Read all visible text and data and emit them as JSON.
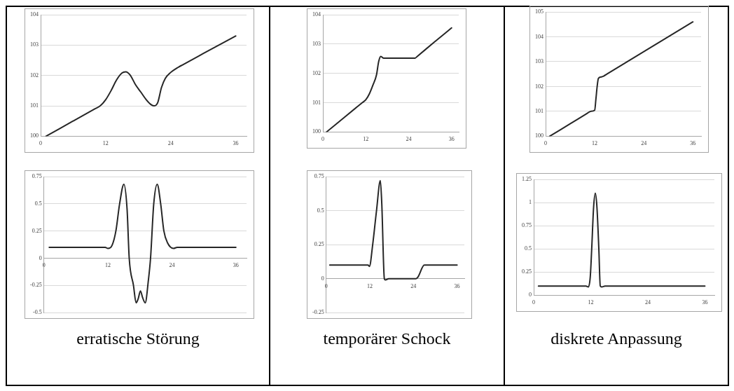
{
  "chart_data": [
    {
      "type": "line",
      "color": "#262626",
      "xlim": [
        0,
        38
      ],
      "xticks": [
        0,
        12,
        24,
        36
      ],
      "ylim": [
        100,
        104
      ],
      "yticks": [
        100,
        101,
        102,
        103,
        104
      ],
      "grid": "y",
      "x": [
        1,
        6,
        10,
        11,
        12,
        13,
        14,
        15,
        15.7,
        16.5,
        17.5,
        18.5,
        19.5,
        20.3,
        20.9,
        21.6,
        22.3,
        23,
        24,
        25.2,
        26.2,
        30,
        36
      ],
      "values": [
        100,
        100.5,
        100.9,
        101,
        101.2,
        101.5,
        101.85,
        102.08,
        102.12,
        102.02,
        101.7,
        101.45,
        101.2,
        101.05,
        101,
        101.1,
        101.6,
        101.9,
        102.1,
        102.25,
        102.35,
        102.72,
        103.3
      ]
    },
    {
      "type": "line",
      "color": "#262626",
      "xlim": [
        0,
        38
      ],
      "xticks": [
        0,
        12,
        24,
        36
      ],
      "ylim": [
        100,
        104
      ],
      "yticks": [
        100,
        101,
        102,
        103,
        104
      ],
      "grid": "y",
      "x": [
        1,
        6,
        11,
        12,
        13,
        14,
        15,
        15.6,
        16.2,
        17,
        21,
        25.8,
        26.4,
        31,
        36
      ],
      "values": [
        100,
        100.5,
        101,
        101.1,
        101.3,
        101.6,
        101.95,
        102.4,
        102.58,
        102.52,
        102.52,
        102.52,
        102.58,
        103.05,
        103.55
      ]
    },
    {
      "type": "line",
      "color": "#262626",
      "xlim": [
        0,
        38
      ],
      "xticks": [
        0,
        12,
        24,
        36
      ],
      "ylim": [
        100,
        105
      ],
      "yticks": [
        100,
        101,
        102,
        103,
        104,
        105
      ],
      "grid": "y",
      "x": [
        1,
        6,
        10,
        11,
        12,
        12.3,
        12.6,
        12.9,
        13.5,
        14.2,
        15,
        25,
        36
      ],
      "values": [
        100,
        100.5,
        100.9,
        101,
        101.05,
        101.5,
        102,
        102.32,
        102.38,
        102.42,
        102.5,
        103.5,
        104.6
      ]
    },
    {
      "type": "line",
      "color": "#262626",
      "xlim": [
        0,
        38
      ],
      "xticks": [
        0,
        12,
        24,
        36
      ],
      "ylim": [
        -0.5,
        0.75
      ],
      "yticks": [
        -0.5,
        -0.25,
        0,
        0.25,
        0.5,
        0.75
      ],
      "grid": "y",
      "x": [
        1,
        11.5,
        12,
        12.8,
        13.5,
        14.2,
        15,
        15.6,
        16,
        16.8,
        17.3,
        17.7,
        18.1,
        18.5,
        19,
        19.6,
        20,
        20.6,
        21.25,
        21.9,
        22.5,
        23.2,
        24.3,
        25,
        36
      ],
      "values": [
        0.1,
        0.1,
        0.09,
        0.12,
        0.25,
        0.5,
        0.68,
        0.45,
        0,
        -0.25,
        -0.41,
        -0.37,
        -0.3,
        -0.36,
        -0.41,
        -0.2,
        0,
        0.5,
        0.68,
        0.5,
        0.25,
        0.14,
        0.09,
        0.1,
        0.1
      ],
      "annotations": [
        "erratische Störung"
      ]
    },
    {
      "type": "line",
      "color": "#262626",
      "xlim": [
        0,
        38
      ],
      "xticks": [
        0,
        12,
        24,
        36
      ],
      "ylim": [
        -0.25,
        0.75
      ],
      "yticks": [
        -0.25,
        0,
        0.25,
        0.5,
        0.75
      ],
      "grid": "y",
      "x": [
        1,
        11.5,
        11.9,
        12.8,
        13.85,
        14.9,
        15.3,
        16,
        16.3,
        17.2,
        24.7,
        25.2,
        27,
        27.5,
        36
      ],
      "values": [
        0.1,
        0.1,
        0.09,
        0.25,
        0.5,
        0.72,
        0.55,
        0,
        -0.01,
        0,
        0,
        0.01,
        0.1,
        0.1,
        0.1
      ],
      "annotations": [
        "temporärer Schock"
      ]
    },
    {
      "type": "line",
      "color": "#262626",
      "xlim": [
        0,
        38
      ],
      "xticks": [
        0,
        12,
        24,
        36
      ],
      "ylim": [
        0,
        1.25
      ],
      "yticks": [
        0,
        0.25,
        0.5,
        0.75,
        1,
        1.25
      ],
      "grid": "y",
      "x": [
        1,
        11,
        11.5,
        11.9,
        12.2,
        12.6,
        12.96,
        13.3,
        13.7,
        14,
        14.3,
        15,
        36
      ],
      "values": [
        0.1,
        0.1,
        0.09,
        0.2,
        0.5,
        0.95,
        1.1,
        0.95,
        0.5,
        0.1,
        0.09,
        0.1,
        0.1
      ],
      "annotations": [
        "diskrete Anpassung"
      ]
    }
  ]
}
